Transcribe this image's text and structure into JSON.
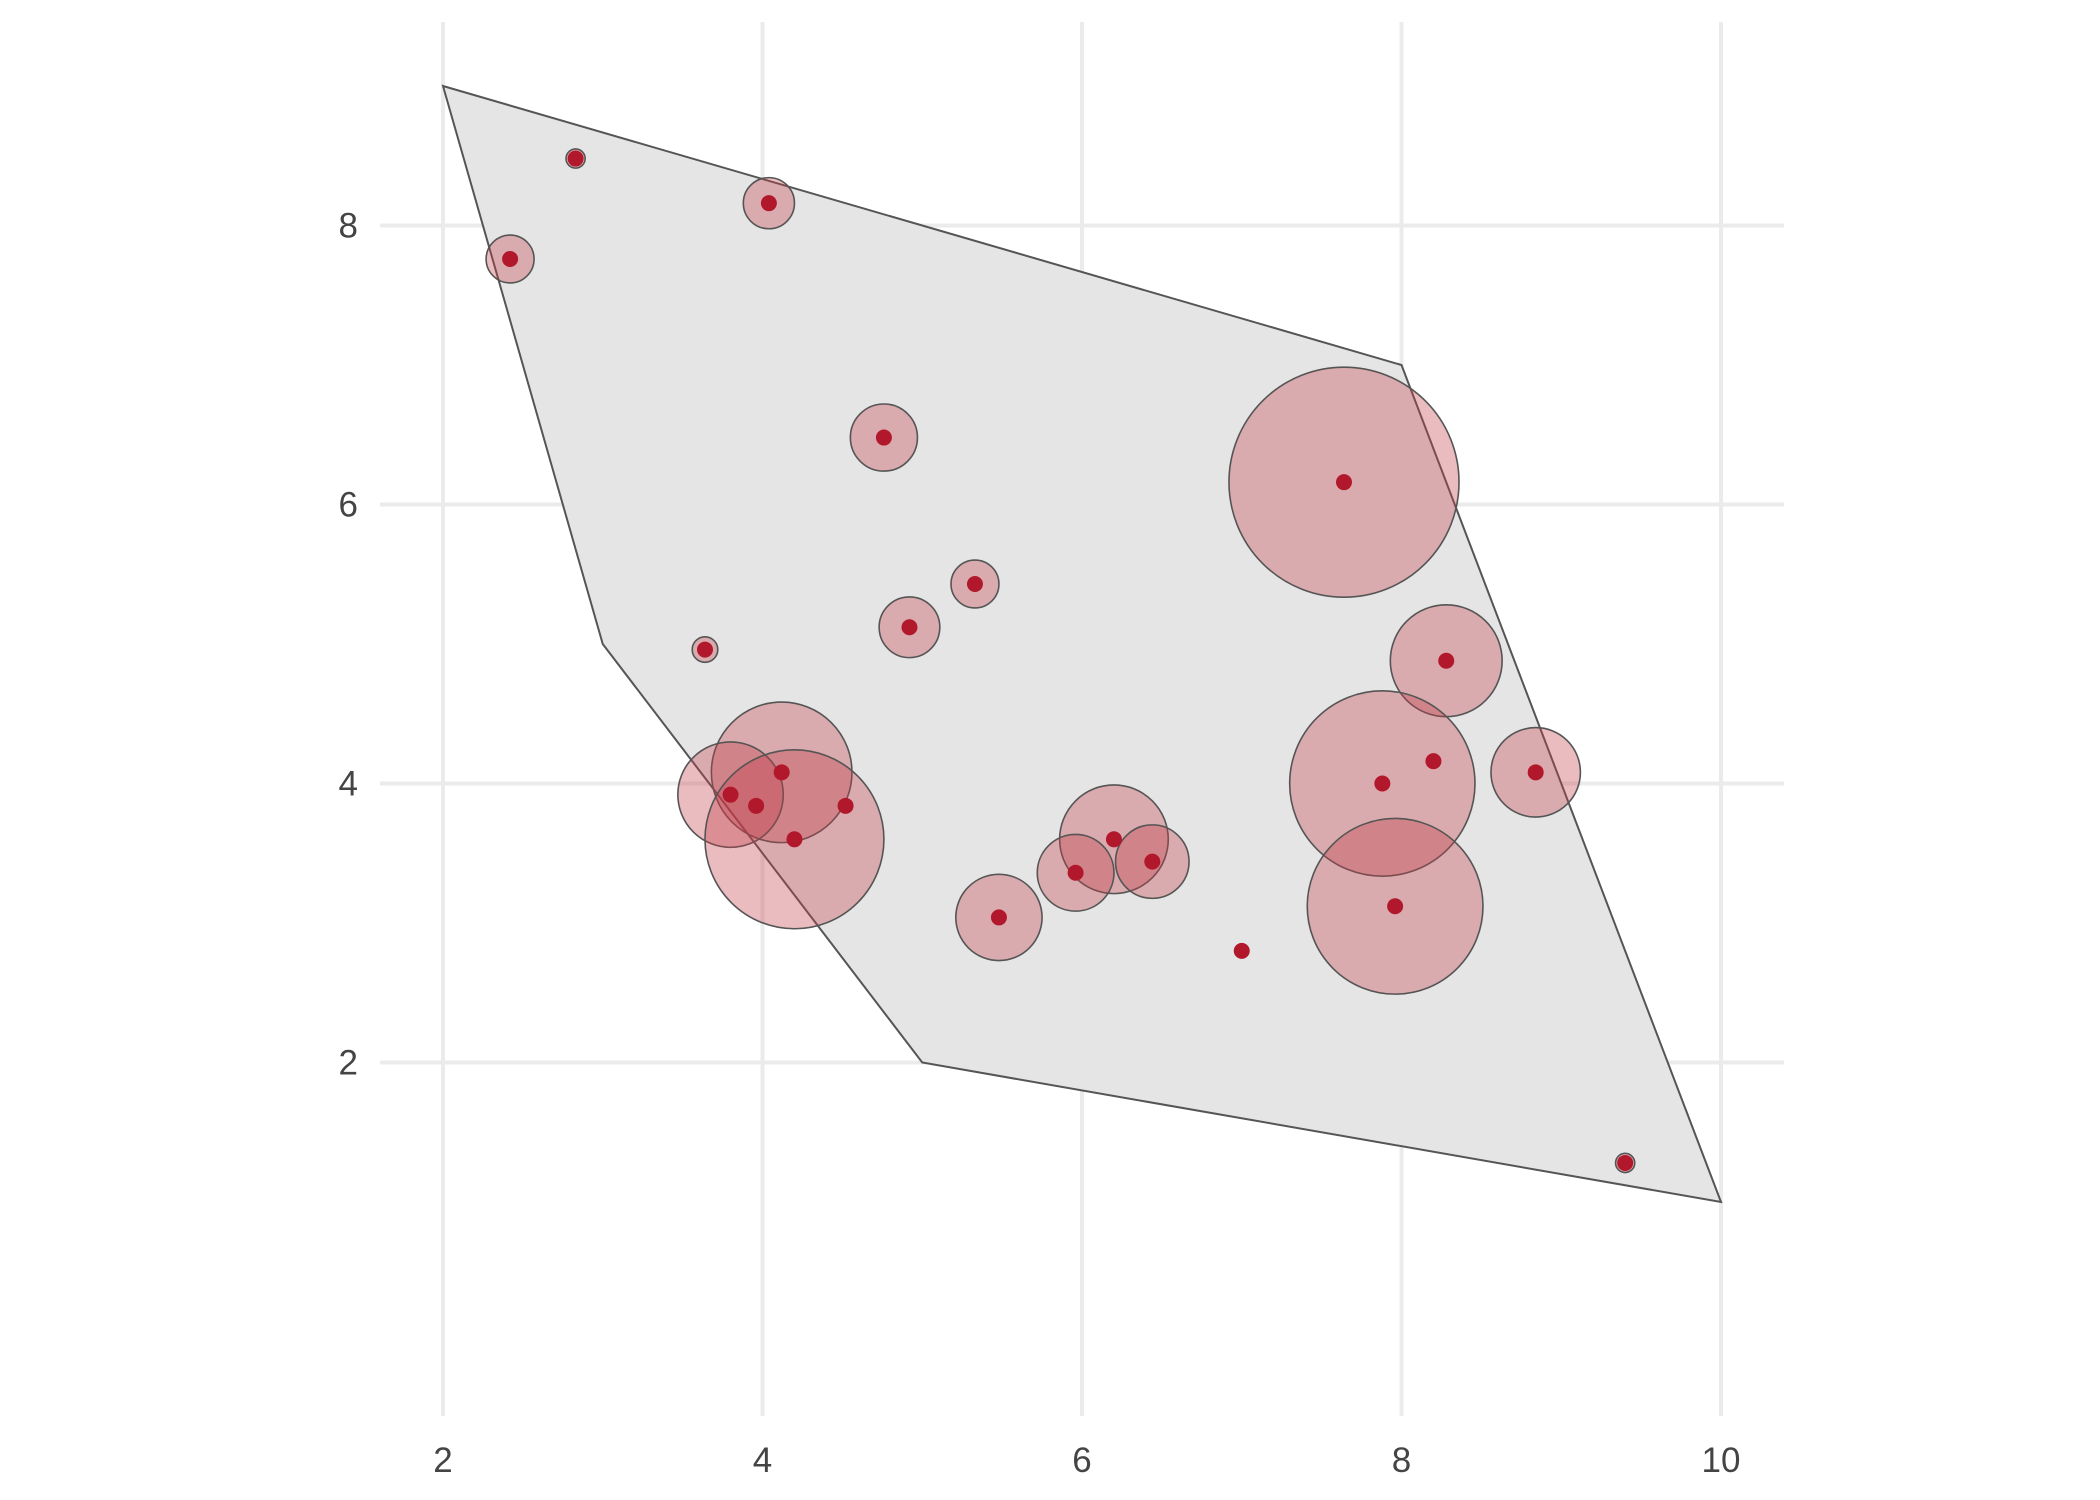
{
  "chart_data": {
    "type": "scatter",
    "title": "",
    "xlabel": "",
    "ylabel": "",
    "xlim": [
      2,
      10
    ],
    "ylim": [
      1,
      9
    ],
    "x_ticks": [
      2,
      4,
      6,
      8,
      10
    ],
    "y_ticks": [
      2,
      4,
      6,
      8
    ],
    "x_tick_labels": [
      "2",
      "4",
      "6",
      "8",
      "10"
    ],
    "y_tick_labels": [
      "2",
      "4",
      "6",
      "8"
    ],
    "grid": true,
    "legend": false,
    "colors": {
      "region_fill": "#e5e5e5",
      "region_stroke": "#555555",
      "bubble_fill": "#c23b47",
      "point": "#b2182b",
      "grid": "#ebebeb"
    },
    "region_polygon": [
      {
        "x": 2,
        "y": 9
      },
      {
        "x": 8,
        "y": 7
      },
      {
        "x": 10,
        "y": 1
      },
      {
        "x": 5,
        "y": 2
      },
      {
        "x": 3,
        "y": 5
      }
    ],
    "points": [
      {
        "x": 2.42,
        "y": 7.76,
        "r": 0.15
      },
      {
        "x": 2.83,
        "y": 8.48,
        "r": 0.06
      },
      {
        "x": 4.04,
        "y": 8.16,
        "r": 0.16
      },
      {
        "x": 4.76,
        "y": 6.48,
        "r": 0.21
      },
      {
        "x": 5.33,
        "y": 5.43,
        "r": 0.15
      },
      {
        "x": 4.92,
        "y": 5.12,
        "r": 0.19
      },
      {
        "x": 3.64,
        "y": 4.96,
        "r": 0.08
      },
      {
        "x": 7.64,
        "y": 6.16,
        "r": 0.72
      },
      {
        "x": 8.28,
        "y": 4.88,
        "r": 0.35
      },
      {
        "x": 8.2,
        "y": 4.16,
        "r": 0.0
      },
      {
        "x": 8.84,
        "y": 4.08,
        "r": 0.28
      },
      {
        "x": 7.88,
        "y": 4.0,
        "r": 0.58
      },
      {
        "x": 7.96,
        "y": 3.12,
        "r": 0.55
      },
      {
        "x": 4.12,
        "y": 4.08,
        "r": 0.44
      },
      {
        "x": 3.8,
        "y": 3.92,
        "r": 0.33
      },
      {
        "x": 3.96,
        "y": 3.84,
        "r": 0.0
      },
      {
        "x": 4.52,
        "y": 3.84,
        "r": 0.0
      },
      {
        "x": 4.2,
        "y": 3.6,
        "r": 0.56
      },
      {
        "x": 6.2,
        "y": 3.6,
        "r": 0.34
      },
      {
        "x": 6.44,
        "y": 3.44,
        "r": 0.23
      },
      {
        "x": 5.96,
        "y": 3.36,
        "r": 0.24
      },
      {
        "x": 5.48,
        "y": 3.04,
        "r": 0.27
      },
      {
        "x": 7.0,
        "y": 2.8,
        "r": 0.0
      },
      {
        "x": 9.4,
        "y": 1.28,
        "r": 0.06
      }
    ]
  }
}
